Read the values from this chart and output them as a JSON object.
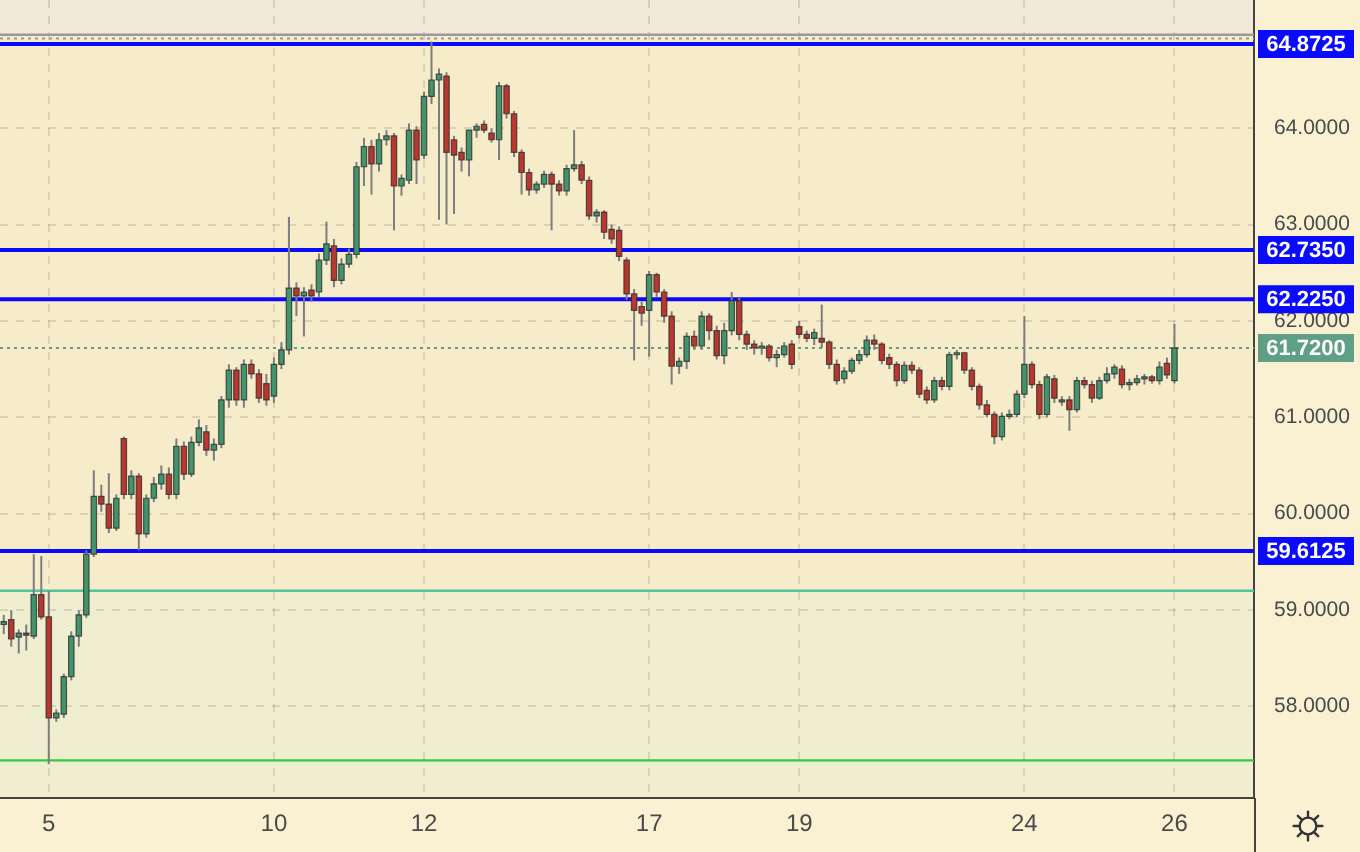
{
  "chart_data": {
    "type": "candlestick",
    "categories": [
      null,
      null,
      null,
      null,
      null,
      null,
      "5",
      null,
      null,
      null,
      null,
      null,
      null,
      null,
      null,
      null,
      null,
      null,
      null,
      null,
      null,
      null,
      null,
      null,
      null,
      null,
      null,
      null,
      null,
      null,
      null,
      null,
      null,
      null,
      null,
      null,
      "10",
      null,
      null,
      null,
      null,
      null,
      null,
      null,
      null,
      null,
      null,
      null,
      null,
      null,
      null,
      null,
      null,
      null,
      null,
      null,
      "12",
      null,
      null,
      null,
      null,
      null,
      null,
      null,
      null,
      null,
      null,
      null,
      null,
      null,
      null,
      null,
      null,
      null,
      null,
      null,
      null,
      null,
      null,
      null,
      null,
      null,
      null,
      null,
      null,
      null,
      "17",
      null,
      null,
      null,
      null,
      null,
      null,
      null,
      null,
      null,
      null,
      null,
      null,
      null,
      null,
      null,
      null,
      null,
      null,
      null,
      "19",
      null,
      null,
      null,
      null,
      null,
      null,
      null,
      null,
      null,
      null,
      null,
      null,
      null,
      null,
      null,
      null,
      null,
      null,
      null,
      null,
      null,
      null,
      null,
      null,
      null,
      null,
      null,
      null,
      null,
      "24",
      null,
      null,
      null,
      null,
      null,
      null,
      null,
      null,
      null,
      null,
      null,
      null,
      null,
      null,
      null,
      null,
      null,
      null,
      null,
      "26"
    ],
    "ohlc": [
      [
        58.85,
        58.95,
        58.75,
        58.88
      ],
      [
        58.9,
        59.0,
        58.62,
        58.7
      ],
      [
        58.72,
        58.8,
        58.55,
        58.76
      ],
      [
        58.76,
        58.85,
        58.58,
        58.74
      ],
      [
        58.73,
        59.58,
        58.7,
        59.16
      ],
      [
        59.16,
        59.56,
        58.9,
        58.93
      ],
      [
        58.93,
        59.2,
        57.4,
        57.88
      ],
      [
        57.88,
        57.97,
        57.84,
        57.93
      ],
      [
        57.92,
        58.34,
        57.88,
        58.31
      ],
      [
        58.31,
        58.78,
        58.27,
        58.73
      ],
      [
        58.73,
        59.0,
        58.62,
        58.95
      ],
      [
        58.95,
        59.62,
        58.92,
        59.58
      ],
      [
        59.58,
        60.45,
        59.55,
        60.18
      ],
      [
        60.18,
        60.3,
        60.02,
        60.1
      ],
      [
        60.1,
        60.42,
        59.8,
        59.85
      ],
      [
        59.85,
        60.2,
        59.82,
        60.16
      ],
      [
        60.78,
        60.8,
        60.15,
        60.2
      ],
      [
        60.2,
        60.45,
        60.15,
        60.39
      ],
      [
        60.39,
        60.42,
        59.62,
        59.79
      ],
      [
        59.79,
        60.2,
        59.75,
        60.16
      ],
      [
        60.16,
        60.38,
        60.12,
        60.31
      ],
      [
        60.31,
        60.5,
        60.25,
        60.41
      ],
      [
        60.41,
        60.48,
        60.15,
        60.2
      ],
      [
        60.2,
        60.78,
        60.15,
        60.7
      ],
      [
        60.7,
        60.75,
        60.35,
        60.41
      ],
      [
        60.41,
        60.8,
        60.38,
        60.74
      ],
      [
        60.74,
        60.98,
        60.7,
        60.89
      ],
      [
        60.85,
        60.92,
        60.6,
        60.66
      ],
      [
        60.66,
        60.78,
        60.55,
        60.72
      ],
      [
        60.72,
        61.22,
        60.68,
        61.18
      ],
      [
        61.18,
        61.55,
        61.1,
        61.49
      ],
      [
        61.49,
        61.52,
        61.12,
        61.18
      ],
      [
        61.18,
        61.6,
        61.1,
        61.55
      ],
      [
        61.55,
        61.6,
        61.4,
        61.45
      ],
      [
        61.45,
        61.5,
        61.15,
        61.2
      ],
      [
        61.35,
        61.45,
        61.12,
        61.18
      ],
      [
        61.22,
        61.62,
        61.15,
        61.55
      ],
      [
        61.55,
        61.78,
        61.5,
        61.7
      ],
      [
        61.7,
        63.08,
        61.65,
        62.34
      ],
      [
        62.34,
        62.4,
        62.05,
        62.26
      ],
      [
        62.26,
        62.35,
        61.84,
        62.3
      ],
      [
        62.32,
        62.38,
        62.2,
        62.26
      ],
      [
        62.3,
        62.7,
        62.25,
        62.63
      ],
      [
        62.63,
        63.03,
        62.58,
        62.8
      ],
      [
        62.78,
        62.85,
        62.35,
        62.42
      ],
      [
        62.42,
        62.65,
        62.38,
        62.59
      ],
      [
        62.59,
        62.75,
        62.55,
        62.69
      ],
      [
        62.69,
        63.65,
        62.65,
        63.6
      ],
      [
        63.6,
        63.9,
        63.4,
        63.81
      ],
      [
        63.81,
        63.88,
        63.31,
        63.63
      ],
      [
        63.63,
        63.95,
        63.55,
        63.88
      ],
      [
        63.88,
        63.98,
        63.82,
        63.92
      ],
      [
        63.92,
        63.95,
        62.94,
        63.4
      ],
      [
        63.4,
        63.52,
        63.3,
        63.48
      ],
      [
        63.46,
        64.05,
        63.42,
        63.98
      ],
      [
        63.98,
        64.02,
        63.42,
        63.67
      ],
      [
        63.72,
        64.38,
        63.68,
        64.33
      ],
      [
        64.33,
        64.9,
        64.25,
        64.5
      ],
      [
        64.5,
        64.62,
        63.05,
        64.56
      ],
      [
        64.54,
        64.58,
        63.0,
        63.75
      ],
      [
        63.88,
        63.92,
        63.11,
        63.72
      ],
      [
        63.75,
        63.8,
        63.55,
        63.67
      ],
      [
        63.67,
        63.98,
        63.5,
        63.98
      ],
      [
        63.98,
        64.05,
        63.9,
        64.02
      ],
      [
        64.04,
        64.08,
        63.95,
        63.98
      ],
      [
        63.95,
        64.0,
        63.85,
        63.88
      ],
      [
        63.88,
        64.48,
        63.67,
        64.44
      ],
      [
        64.44,
        64.46,
        64.1,
        64.15
      ],
      [
        64.15,
        64.18,
        63.7,
        63.75
      ],
      [
        63.75,
        63.78,
        63.31,
        63.54
      ],
      [
        63.54,
        63.58,
        63.3,
        63.36
      ],
      [
        63.36,
        63.45,
        63.32,
        63.42
      ],
      [
        63.42,
        63.56,
        63.38,
        63.52
      ],
      [
        63.52,
        63.55,
        62.94,
        63.42
      ],
      [
        63.42,
        63.46,
        63.3,
        63.35
      ],
      [
        63.35,
        63.62,
        63.3,
        63.58
      ],
      [
        63.58,
        63.98,
        63.55,
        63.62
      ],
      [
        63.62,
        63.66,
        63.42,
        63.46
      ],
      [
        63.46,
        63.5,
        63.05,
        63.09
      ],
      [
        63.09,
        63.16,
        63.02,
        63.13
      ],
      [
        63.13,
        63.15,
        62.85,
        62.92
      ],
      [
        62.95,
        63.0,
        62.8,
        62.85
      ],
      [
        62.94,
        62.98,
        62.62,
        62.67
      ],
      [
        62.63,
        62.66,
        62.22,
        62.28
      ],
      [
        62.28,
        62.33,
        61.59,
        62.11
      ],
      [
        62.15,
        62.2,
        61.95,
        62.08
      ],
      [
        62.11,
        62.52,
        61.63,
        62.48
      ],
      [
        62.48,
        62.5,
        62.25,
        62.3
      ],
      [
        62.3,
        62.33,
        61.98,
        62.05
      ],
      [
        62.05,
        62.1,
        61.34,
        61.53
      ],
      [
        61.53,
        61.62,
        61.45,
        61.58
      ],
      [
        61.58,
        61.88,
        61.5,
        61.84
      ],
      [
        61.84,
        61.9,
        61.7,
        61.74
      ],
      [
        61.74,
        62.1,
        61.7,
        62.05
      ],
      [
        62.05,
        62.08,
        61.8,
        61.9
      ],
      [
        61.9,
        61.95,
        61.6,
        61.64
      ],
      [
        61.64,
        61.98,
        61.55,
        61.9
      ],
      [
        61.9,
        62.3,
        61.85,
        62.21
      ],
      [
        62.21,
        62.24,
        61.8,
        61.86
      ],
      [
        61.86,
        61.9,
        61.7,
        61.76
      ],
      [
        61.76,
        61.8,
        61.65,
        61.72
      ],
      [
        61.72,
        61.78,
        61.65,
        61.74
      ],
      [
        61.74,
        61.76,
        61.58,
        61.62
      ],
      [
        61.62,
        61.7,
        61.52,
        61.65
      ],
      [
        61.65,
        61.78,
        61.62,
        61.74
      ],
      [
        61.76,
        61.8,
        61.5,
        61.55
      ],
      [
        61.94,
        62.0,
        61.82,
        61.86
      ],
      [
        61.86,
        61.9,
        61.78,
        61.82
      ],
      [
        61.82,
        61.92,
        61.75,
        61.88
      ],
      [
        61.82,
        62.17,
        61.72,
        61.78
      ],
      [
        61.78,
        61.8,
        61.5,
        61.55
      ],
      [
        61.55,
        61.6,
        61.34,
        61.38
      ],
      [
        61.4,
        61.52,
        61.35,
        61.48
      ],
      [
        61.48,
        61.62,
        61.45,
        61.59
      ],
      [
        61.59,
        61.7,
        61.55,
        61.65
      ],
      [
        61.65,
        61.85,
        61.62,
        61.8
      ],
      [
        61.8,
        61.86,
        61.7,
        61.76
      ],
      [
        61.76,
        61.78,
        61.55,
        61.59
      ],
      [
        61.62,
        61.66,
        61.5,
        61.55
      ],
      [
        61.55,
        61.58,
        61.32,
        61.38
      ],
      [
        61.38,
        61.58,
        61.35,
        61.54
      ],
      [
        61.54,
        61.58,
        61.45,
        61.49
      ],
      [
        61.49,
        61.52,
        61.2,
        61.24
      ],
      [
        61.28,
        61.32,
        61.14,
        61.18
      ],
      [
        61.18,
        61.42,
        61.15,
        61.38
      ],
      [
        61.38,
        61.42,
        61.28,
        61.32
      ],
      [
        61.32,
        61.68,
        61.28,
        61.65
      ],
      [
        61.65,
        61.7,
        61.6,
        61.67
      ],
      [
        61.67,
        61.68,
        61.45,
        61.49
      ],
      [
        61.49,
        61.52,
        61.28,
        61.32
      ],
      [
        61.32,
        61.35,
        61.08,
        61.13
      ],
      [
        61.13,
        61.18,
        61.0,
        61.03
      ],
      [
        61.03,
        61.06,
        60.72,
        60.8
      ],
      [
        60.8,
        61.05,
        60.76,
        61.01
      ],
      [
        61.01,
        61.08,
        60.98,
        61.03
      ],
      [
        61.03,
        61.28,
        61.0,
        61.24
      ],
      [
        61.24,
        62.05,
        61.2,
        61.55
      ],
      [
        61.55,
        61.58,
        61.3,
        61.34
      ],
      [
        61.34,
        61.38,
        60.98,
        61.03
      ],
      [
        61.03,
        61.45,
        61.0,
        61.42
      ],
      [
        61.4,
        61.44,
        61.15,
        61.2
      ],
      [
        61.16,
        61.22,
        61.12,
        61.18
      ],
      [
        61.18,
        61.22,
        60.86,
        61.08
      ],
      [
        61.08,
        61.42,
        61.05,
        61.38
      ],
      [
        61.38,
        61.42,
        61.3,
        61.34
      ],
      [
        61.34,
        61.38,
        61.15,
        61.2
      ],
      [
        61.2,
        61.42,
        61.18,
        61.38
      ],
      [
        61.38,
        61.52,
        61.35,
        61.45
      ],
      [
        61.45,
        61.55,
        61.4,
        61.52
      ],
      [
        61.5,
        61.54,
        61.3,
        61.34
      ],
      [
        61.34,
        61.4,
        61.28,
        61.36
      ],
      [
        61.36,
        61.44,
        61.33,
        61.4
      ],
      [
        61.4,
        61.45,
        61.34,
        61.42
      ],
      [
        61.42,
        61.44,
        61.35,
        61.38
      ],
      [
        61.38,
        61.58,
        61.34,
        61.52
      ],
      [
        61.56,
        61.62,
        61.4,
        61.44
      ],
      [
        61.38,
        61.97,
        61.35,
        61.72
      ]
    ],
    "colors": [
      "#43936b",
      "#b8382f",
      "#43936b",
      "#b8382f",
      "#43936b",
      "#b8382f",
      "#b8382f",
      "#43936b",
      "#43936b",
      "#43936b",
      "#43936b",
      "#43936b",
      "#43936b",
      "#b8382f",
      "#b8382f",
      "#43936b",
      "#b8382f",
      "#43936b",
      "#b8382f",
      "#43936b",
      "#43936b",
      "#43936b",
      "#b8382f",
      "#43936b",
      "#b8382f",
      "#43936b",
      "#43936b",
      "#b8382f",
      "#43936b",
      "#43936b",
      "#43936b",
      "#b8382f",
      "#43936b",
      "#b8382f",
      "#b8382f",
      "#b8382f",
      "#43936b",
      "#43936b",
      "#43936b",
      "#b8382f",
      "#43936b",
      "#b8382f",
      "#43936b",
      "#43936b",
      "#b8382f",
      "#43936b",
      "#43936b",
      "#43936b",
      "#43936b",
      "#b8382f",
      "#43936b",
      "#43936b",
      "#b8382f",
      "#43936b",
      "#43936b",
      "#b8382f",
      "#43936b",
      "#43936b",
      "#43936b",
      "#b8382f",
      "#b8382f",
      "#b8382f",
      "#43936b",
      "#43936b",
      "#b8382f",
      "#b8382f",
      "#43936b",
      "#b8382f",
      "#b8382f",
      "#b8382f",
      "#b8382f",
      "#43936b",
      "#43936b",
      "#b8382f",
      "#b8382f",
      "#43936b",
      "#43936b",
      "#b8382f",
      "#b8382f",
      "#43936b",
      "#b8382f",
      "#b8382f",
      "#b8382f",
      "#b8382f",
      "#b8382f",
      "#b8382f",
      "#43936b",
      "#b8382f",
      "#b8382f",
      "#b8382f",
      "#43936b",
      "#43936b",
      "#b8382f",
      "#43936b",
      "#b8382f",
      "#b8382f",
      "#43936b",
      "#43936b",
      "#b8382f",
      "#b8382f",
      "#b8382f",
      "#43936b",
      "#b8382f",
      "#43936b",
      "#43936b",
      "#b8382f",
      "#b8382f",
      "#b8382f",
      "#43936b",
      "#b8382f",
      "#b8382f",
      "#b8382f",
      "#43936b",
      "#43936b",
      "#43936b",
      "#43936b",
      "#b8382f",
      "#b8382f",
      "#b8382f",
      "#b8382f",
      "#43936b",
      "#b8382f",
      "#b8382f",
      "#b8382f",
      "#43936b",
      "#b8382f",
      "#43936b",
      "#43936b",
      "#b8382f",
      "#b8382f",
      "#b8382f",
      "#b8382f",
      "#b8382f",
      "#43936b",
      "#43936b",
      "#43936b",
      "#43936b",
      "#b8382f",
      "#b8382f",
      "#43936b",
      "#b8382f",
      "#43936b",
      "#b8382f",
      "#43936b",
      "#b8382f",
      "#b8382f",
      "#43936b",
      "#43936b",
      "#43936b",
      "#b8382f",
      "#43936b",
      "#43936b",
      "#43936b",
      "#b8382f",
      "#43936b",
      "#b8382f",
      "#43936b"
    ],
    "ylim": [
      57.05,
      65.33
    ],
    "yticks": [
      {
        "value": 58,
        "label": "58.0000"
      },
      {
        "value": 59,
        "label": "59.0000"
      },
      {
        "value": 60,
        "label": "60.0000"
      },
      {
        "value": 61,
        "label": "61.0000"
      },
      {
        "value": 62,
        "label": "62.0000"
      },
      {
        "value": 63,
        "label": "63.0000"
      },
      {
        "value": 64,
        "label": "64.0000"
      }
    ],
    "grid": true,
    "bands": [
      {
        "axis": "y",
        "from": 64.97,
        "to": 65.33,
        "color": "#f2e9d8"
      },
      {
        "axis": "y",
        "from": 57.05,
        "to": 59.2,
        "color": "#f0eed1"
      }
    ],
    "ref_lines": [
      {
        "axis": "y",
        "value": 64.97,
        "color": "#9a9a9a"
      },
      {
        "axis": "y",
        "value": 64.93,
        "color": "#9a9a9a",
        "line_style": "dotted"
      },
      {
        "axis": "y",
        "value": 64.8725,
        "label": "64.8725",
        "color": "#0a0aff"
      },
      {
        "axis": "y",
        "value": 62.735,
        "label": "62.7350",
        "color": "#0a0aff"
      },
      {
        "axis": "y",
        "value": 62.225,
        "label": "62.2250",
        "color": "#0a0aff"
      },
      {
        "axis": "y",
        "value": 61.72,
        "label": "61.7200",
        "color": "#5f9f86",
        "line_style": "dotted"
      },
      {
        "axis": "y",
        "value": 59.6125,
        "label": "59.6125",
        "color": "#0a0aff"
      },
      {
        "axis": "y",
        "value": 59.2,
        "color": "#52c49a"
      },
      {
        "axis": "y",
        "value": 57.44,
        "color": "#2ecc40"
      }
    ]
  }
}
